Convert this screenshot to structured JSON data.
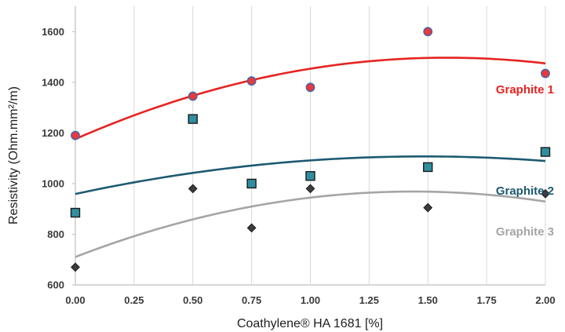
{
  "chart_data": {
    "type": "scatter",
    "title": "",
    "xlabel": "Coathylene® HA 1681 [%]",
    "ylabel": "Resistivity (Ohm.mm²/m)",
    "xlim": [
      0,
      2
    ],
    "ylim": [
      600,
      1700
    ],
    "x_ticks": [
      "0.00",
      "0.25",
      "0.50",
      "0.75",
      "1.00",
      "1.25",
      "1.50",
      "1.75",
      "2.00"
    ],
    "y_ticks": [
      "600",
      "800",
      "1000",
      "1200",
      "1400",
      "1600"
    ],
    "grid": "vertical",
    "trendline": "polynomial order 2",
    "series": [
      {
        "name": "Graphite 1",
        "marker": "circle",
        "marker_color": "#e8393b",
        "marker_edge": "#3a67b0",
        "line_color": "#e52421",
        "x": [
          0,
          0.5,
          0.75,
          1.0,
          1.5,
          2.0
        ],
        "y": [
          1190,
          1345,
          1405,
          1380,
          1600,
          1435
        ]
      },
      {
        "name": "Graphite 2",
        "marker": "square",
        "marker_color": "#2f8fa0",
        "marker_edge": "#1a1a1a",
        "line_color": "#1d5a72",
        "x": [
          0,
          0.5,
          0.75,
          1.0,
          1.5,
          2.0
        ],
        "y": [
          885,
          1255,
          1000,
          1030,
          1065,
          1125
        ]
      },
      {
        "name": "Graphite 3",
        "marker": "diamond",
        "marker_color": "#3c3c3c",
        "marker_edge": "#1a1a1a",
        "line_color": "#a5a5a5",
        "x": [
          0,
          0.5,
          0.75,
          1.0,
          1.5,
          2.0
        ],
        "y": [
          670,
          980,
          825,
          980,
          905,
          960
        ]
      }
    ]
  }
}
